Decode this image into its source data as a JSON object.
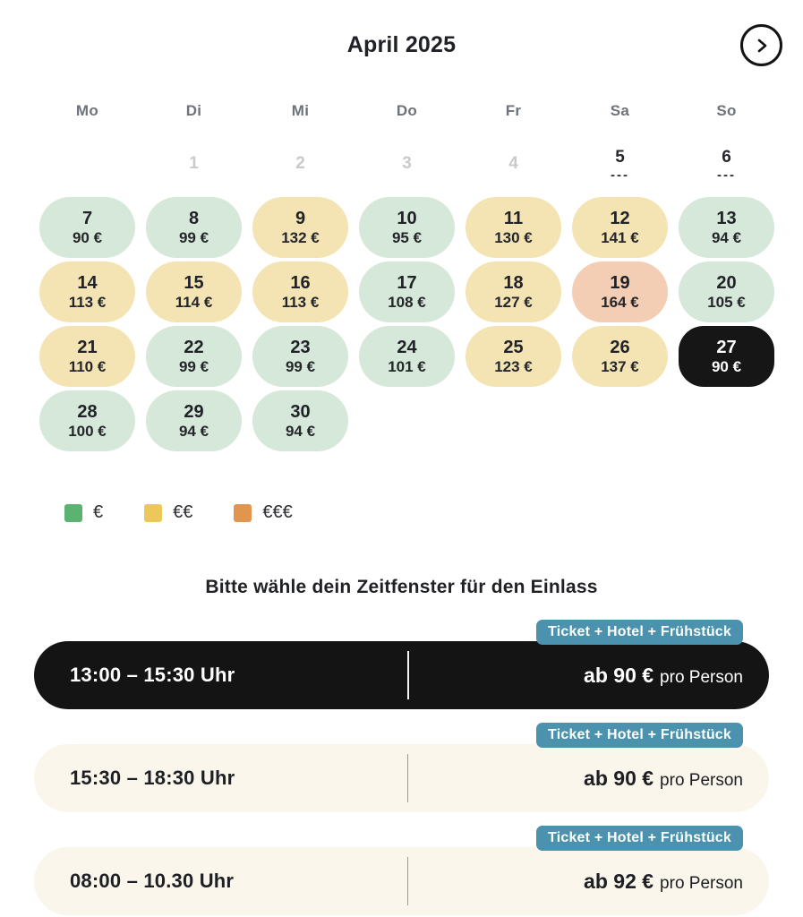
{
  "header": {
    "title": "April 2025",
    "next_icon": "chevron-right"
  },
  "calendar": {
    "weekdays": [
      "Mo",
      "Di",
      "Mi",
      "Do",
      "Fr",
      "Sa",
      "So"
    ],
    "leading_empty_cells": 1,
    "days": [
      {
        "num": "1",
        "state": "past"
      },
      {
        "num": "2",
        "state": "past"
      },
      {
        "num": "3",
        "state": "past"
      },
      {
        "num": "4",
        "state": "past"
      },
      {
        "num": "5",
        "state": "soldout",
        "marker": "---"
      },
      {
        "num": "6",
        "state": "soldout",
        "marker": "---"
      },
      {
        "num": "7",
        "state": "available",
        "tier": "low",
        "price": "90 €"
      },
      {
        "num": "8",
        "state": "available",
        "tier": "low",
        "price": "99 €"
      },
      {
        "num": "9",
        "state": "available",
        "tier": "mid",
        "price": "132 €"
      },
      {
        "num": "10",
        "state": "available",
        "tier": "low",
        "price": "95 €"
      },
      {
        "num": "11",
        "state": "available",
        "tier": "mid",
        "price": "130 €"
      },
      {
        "num": "12",
        "state": "available",
        "tier": "mid",
        "price": "141 €"
      },
      {
        "num": "13",
        "state": "available",
        "tier": "low",
        "price": "94 €"
      },
      {
        "num": "14",
        "state": "available",
        "tier": "mid",
        "price": "113 €"
      },
      {
        "num": "15",
        "state": "available",
        "tier": "mid",
        "price": "114 €"
      },
      {
        "num": "16",
        "state": "available",
        "tier": "mid",
        "price": "113 €"
      },
      {
        "num": "17",
        "state": "available",
        "tier": "low",
        "price": "108 €"
      },
      {
        "num": "18",
        "state": "available",
        "tier": "mid",
        "price": "127 €"
      },
      {
        "num": "19",
        "state": "available",
        "tier": "high",
        "price": "164 €"
      },
      {
        "num": "20",
        "state": "available",
        "tier": "low",
        "price": "105 €"
      },
      {
        "num": "21",
        "state": "available",
        "tier": "mid",
        "price": "110 €"
      },
      {
        "num": "22",
        "state": "available",
        "tier": "low",
        "price": "99 €"
      },
      {
        "num": "23",
        "state": "available",
        "tier": "low",
        "price": "99 €"
      },
      {
        "num": "24",
        "state": "available",
        "tier": "low",
        "price": "101 €"
      },
      {
        "num": "25",
        "state": "available",
        "tier": "mid",
        "price": "123 €"
      },
      {
        "num": "26",
        "state": "available",
        "tier": "mid",
        "price": "137 €"
      },
      {
        "num": "27",
        "state": "selected",
        "tier": "selected",
        "price": "90 €"
      },
      {
        "num": "28",
        "state": "available",
        "tier": "low",
        "price": "100 €"
      },
      {
        "num": "29",
        "state": "available",
        "tier": "low",
        "price": "94 €"
      },
      {
        "num": "30",
        "state": "available",
        "tier": "low",
        "price": "94 €"
      }
    ]
  },
  "legend": {
    "items": [
      {
        "symbol": "€",
        "color": "#5cb270"
      },
      {
        "symbol": "€€",
        "color": "#ecc85a"
      },
      {
        "symbol": "€€€",
        "color": "#e2954f"
      }
    ]
  },
  "timeslot_section": {
    "heading": "Bitte wähle dein Zeitfenster für den Einlass",
    "slots": [
      {
        "time": "13:00 – 15:30 Uhr",
        "badge": "Ticket + Hotel + Frühstück",
        "price_bold": "ab 90 €",
        "price_rest": "pro Person",
        "selected": true
      },
      {
        "time": "15:30 – 18:30 Uhr",
        "badge": "Ticket + Hotel + Frühstück",
        "price_bold": "ab 90 €",
        "price_rest": "pro Person",
        "selected": false
      },
      {
        "time": "08:00 – 10.30 Uhr",
        "badge": "Ticket + Hotel + Frühstück",
        "price_bold": "ab 92 €",
        "price_rest": "pro Person",
        "selected": false
      }
    ]
  },
  "colors": {
    "tier_low_bg": "#d5e8da",
    "tier_mid_bg": "#f4e4b4",
    "tier_high_bg": "#f3ceb4",
    "selected_bg": "#161616",
    "badge_bg": "#4a92ad",
    "slot_bg": "#faf6ec",
    "slot_selected_bg": "#141414"
  }
}
